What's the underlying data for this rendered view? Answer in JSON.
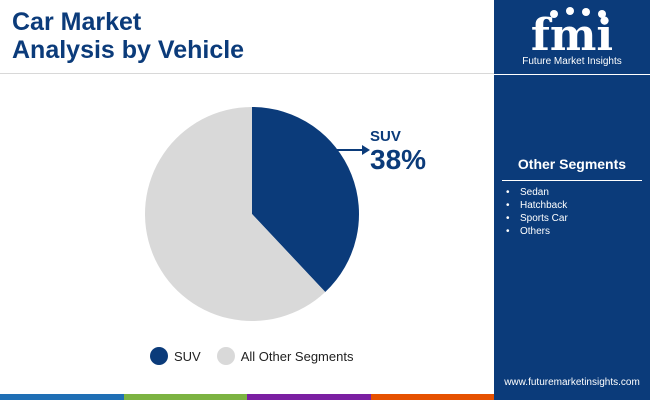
{
  "header": {
    "title_line1": "Car Market",
    "title_line2": "Analysis by Vehicle"
  },
  "logo": {
    "letters": "fmi",
    "company": "Future Market Insights"
  },
  "sidebar": {
    "segments_title": "Other Segments",
    "segments": [
      "Sedan",
      "Hatchback",
      "Sports Car",
      "Others"
    ],
    "url": "www.futuremarketinsights.com"
  },
  "callout": {
    "label": "SUV",
    "value": "38%"
  },
  "colors": {
    "navy": "#0b3b7a",
    "grey": "#d9d9d9",
    "bar": [
      "#1f6fb5",
      "#7cb342",
      "#7b1fa2",
      "#e65100"
    ]
  },
  "chart_data": {
    "type": "pie",
    "categories": [
      "SUV",
      "All Other Segments"
    ],
    "values": [
      38,
      62
    ],
    "legend_placement": "bottom"
  }
}
